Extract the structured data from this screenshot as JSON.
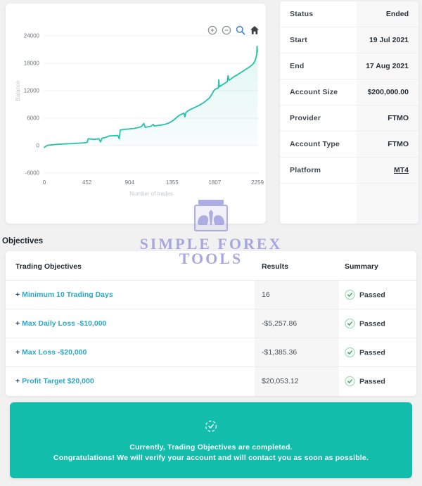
{
  "details": {
    "rows": [
      {
        "label": "Status",
        "value": "Ended"
      },
      {
        "label": "Start",
        "value": "19 Jul 2021"
      },
      {
        "label": "End",
        "value": "17 Aug 2021"
      },
      {
        "label": "Account Size",
        "value": "$200,000.00"
      },
      {
        "label": "Provider",
        "value": "FTMO"
      },
      {
        "label": "Account Type",
        "value": "FTMO"
      },
      {
        "label": "Platform",
        "value": "MT4"
      }
    ]
  },
  "chart_data": {
    "type": "line",
    "title": "",
    "xlabel": "Number of trades",
    "ylabel": "Balance",
    "x_ticks": [
      0,
      452,
      904,
      1355,
      1807,
      2259
    ],
    "y_ticks": [
      -6000,
      0,
      6000,
      12000,
      18000,
      24000
    ],
    "xlim": [
      0,
      2259
    ],
    "ylim": [
      -6000,
      24000
    ],
    "grid": true,
    "legend": "none",
    "line_color": "#25c1a9",
    "fill_color_top": "rgba(37,193,169,0.14)",
    "fill_color_bottom": "rgba(37,193,169,0.03)",
    "toolbar_icons": [
      "zoom-in",
      "zoom-out",
      "box-zoom",
      "reset-axes"
    ],
    "series": [
      {
        "name": "Balance",
        "points": [
          [
            0,
            -400
          ],
          [
            20,
            -100
          ],
          [
            40,
            80
          ],
          [
            120,
            250
          ],
          [
            200,
            350
          ],
          [
            300,
            450
          ],
          [
            420,
            600
          ],
          [
            455,
            700
          ],
          [
            465,
            1500
          ],
          [
            530,
            1350
          ],
          [
            580,
            1500
          ],
          [
            597,
            800
          ],
          [
            610,
            1600
          ],
          [
            650,
            1800
          ],
          [
            690,
            2100
          ],
          [
            730,
            2150
          ],
          [
            780,
            2200
          ],
          [
            795,
            1500
          ],
          [
            805,
            3400
          ],
          [
            850,
            3550
          ],
          [
            904,
            3650
          ],
          [
            950,
            3750
          ],
          [
            1000,
            3950
          ],
          [
            1030,
            4200
          ],
          [
            1055,
            4850
          ],
          [
            1070,
            4000
          ],
          [
            1100,
            4100
          ],
          [
            1130,
            4250
          ],
          [
            1155,
            4650
          ],
          [
            1165,
            4300
          ],
          [
            1200,
            4400
          ],
          [
            1240,
            4500
          ],
          [
            1280,
            4650
          ],
          [
            1320,
            4950
          ],
          [
            1355,
            5350
          ],
          [
            1380,
            5700
          ],
          [
            1400,
            6100
          ],
          [
            1430,
            6600
          ],
          [
            1460,
            6900
          ],
          [
            1480,
            7100
          ],
          [
            1490,
            6300
          ],
          [
            1500,
            7200
          ],
          [
            1530,
            7700
          ],
          [
            1570,
            8100
          ],
          [
            1610,
            8500
          ],
          [
            1650,
            8900
          ],
          [
            1690,
            9400
          ],
          [
            1720,
            9900
          ],
          [
            1750,
            10400
          ],
          [
            1775,
            11200
          ],
          [
            1800,
            12100
          ],
          [
            1820,
            12400
          ],
          [
            1845,
            12600
          ],
          [
            1850,
            14400
          ],
          [
            1856,
            12900
          ],
          [
            1880,
            13200
          ],
          [
            1910,
            13600
          ],
          [
            1940,
            14000
          ],
          [
            1948,
            15300
          ],
          [
            1958,
            14300
          ],
          [
            1980,
            14600
          ],
          [
            2010,
            15100
          ],
          [
            2040,
            15400
          ],
          [
            2070,
            15800
          ],
          [
            2100,
            16200
          ],
          [
            2130,
            16600
          ],
          [
            2160,
            17000
          ],
          [
            2190,
            17400
          ],
          [
            2215,
            17900
          ],
          [
            2235,
            18600
          ],
          [
            2245,
            19300
          ],
          [
            2252,
            20000
          ],
          [
            2255,
            21700
          ],
          [
            2259,
            20500
          ]
        ]
      }
    ]
  },
  "objectives": {
    "heading": "Objectives",
    "headers": [
      "Trading Objectives",
      "Results",
      "Summary"
    ],
    "rows": [
      {
        "prefix": "+",
        "objective": "Minimum 10 Trading Days",
        "result": "16",
        "summary": "Passed"
      },
      {
        "prefix": "+",
        "objective": "Max Daily Loss -$10,000",
        "result": "-$5,257.86",
        "summary": "Passed"
      },
      {
        "prefix": "+",
        "objective": "Max Loss -$20,000",
        "result": "-$1,385.36",
        "summary": "Passed"
      },
      {
        "prefix": "+",
        "objective": "Profit Target $20,000",
        "result": "$20,053.12",
        "summary": "Passed"
      }
    ],
    "passed_color": "#3fae62",
    "link_color": "#2ba9c4"
  },
  "banner": {
    "line1": "Currently, Trading Objectives are completed.",
    "line2": "Congratulations! We will verify your account and will contact you as soon as possible.",
    "bg_color": "#12bdac"
  },
  "watermark": {
    "line1": "SIMPLE FOREX",
    "line2": "TOOLS",
    "color": "#a0a0df"
  }
}
